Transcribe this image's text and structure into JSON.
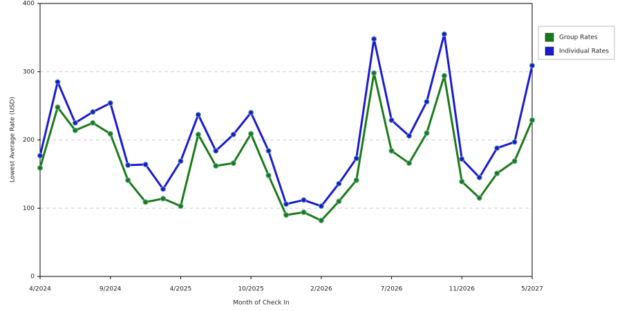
{
  "chart_data": {
    "type": "line",
    "x_label": "Month of Check In",
    "y_label": "Lowest Average Rate (USD)",
    "categories": [
      "4/2024",
      null,
      null,
      null,
      "9/2024",
      null,
      null,
      null,
      "4/2025",
      null,
      null,
      null,
      "10/2025",
      null,
      null,
      null,
      "2/2026",
      null,
      null,
      null,
      "7/2026",
      null,
      null,
      null,
      "11/2026",
      null,
      null,
      null,
      "5/2027"
    ],
    "series": [
      {
        "name": "Group Rates",
        "color": "#1a7a1a",
        "values": [
          159,
          248,
          214,
          225,
          209,
          141,
          109,
          114,
          103,
          208,
          162,
          166,
          209,
          148,
          90,
          94,
          82,
          110,
          141,
          298,
          184,
          166,
          210,
          294,
          139,
          115,
          151,
          169,
          229
        ]
      },
      {
        "name": "Individual Rates",
        "color": "#1a1ad0",
        "values": [
          177,
          285,
          225,
          241,
          254,
          163,
          164,
          128,
          169,
          237,
          184,
          208,
          240,
          184,
          106,
          112,
          103,
          136,
          173,
          348,
          229,
          206,
          256,
          355,
          172,
          145,
          188,
          197,
          309
        ]
      }
    ],
    "ylim": [
      0,
      400
    ],
    "yticks": [
      0,
      100,
      200,
      300,
      400
    ],
    "grid": true,
    "legend": "right"
  }
}
